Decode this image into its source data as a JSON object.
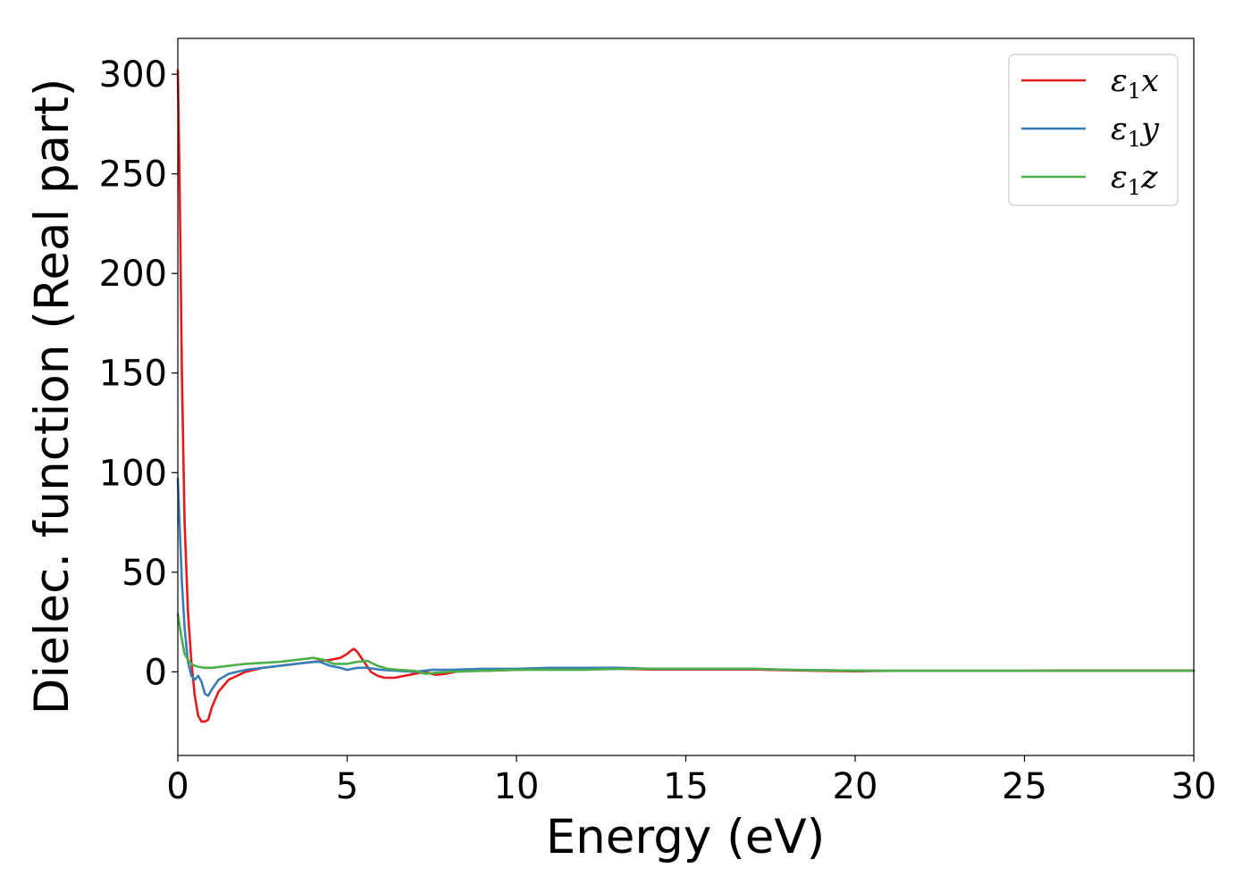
{
  "chart_data": {
    "type": "line",
    "xlabel": "Energy (eV)",
    "ylabel": "Dielec. function (Real part)",
    "xlim": [
      0,
      30
    ],
    "ylim": [
      -42,
      318
    ],
    "xticks": [
      0,
      5,
      10,
      15,
      20,
      25,
      30
    ],
    "yticks": [
      0,
      50,
      100,
      150,
      200,
      250,
      300
    ],
    "grid": false,
    "legend_position": "top-right",
    "series": [
      {
        "name_main": "ε",
        "name_sub": "1",
        "name_suffix": "x",
        "color": "#e41a1c",
        "x": [
          0.0,
          0.05,
          0.12,
          0.2,
          0.3,
          0.4,
          0.5,
          0.6,
          0.7,
          0.8,
          0.9,
          1.0,
          1.2,
          1.5,
          2.0,
          2.5,
          3.0,
          3.5,
          4.0,
          4.5,
          4.8,
          5.0,
          5.1,
          5.2,
          5.3,
          5.5,
          5.7,
          5.9,
          6.1,
          6.4,
          6.7,
          7.0,
          7.3,
          7.6,
          7.9,
          8.2,
          8.5,
          9.0,
          10.0,
          11.0,
          12.0,
          13.0,
          14.0,
          15.0,
          16.0,
          17.0,
          18.0,
          19.0,
          20.0,
          21.0,
          22.0,
          23.0,
          24.0,
          25.0,
          26.0,
          27.0,
          28.0,
          29.0,
          30.0
        ],
        "y": [
          302,
          250,
          150,
          75,
          30,
          5,
          -12,
          -22,
          -25,
          -25,
          -24,
          -18,
          -10,
          -4,
          0,
          2,
          3,
          4,
          5,
          6,
          7,
          9,
          10.5,
          11.5,
          10,
          5,
          0,
          -2,
          -3,
          -3,
          -2,
          -1,
          0,
          -1.5,
          -1,
          0,
          0.5,
          0.5,
          1,
          1.5,
          1.5,
          1.5,
          1.2,
          1.2,
          1.2,
          1.2,
          0.8,
          0.5,
          0.3,
          0.5,
          0.5,
          0.5,
          0.5,
          0.5,
          0.6,
          0.6,
          0.6,
          0.6,
          0.6
        ]
      },
      {
        "name_main": "ε",
        "name_sub": "1",
        "name_suffix": "y",
        "color": "#377eb8",
        "x": [
          0.0,
          0.05,
          0.12,
          0.2,
          0.3,
          0.4,
          0.5,
          0.6,
          0.7,
          0.8,
          0.9,
          1.0,
          1.2,
          1.5,
          2.0,
          2.5,
          3.0,
          3.5,
          4.0,
          4.2,
          4.5,
          4.8,
          5.0,
          5.3,
          5.6,
          6.0,
          6.5,
          7.0,
          7.5,
          8.0,
          9.0,
          10.0,
          11.0,
          12.0,
          13.0,
          14.0,
          15.0,
          16.0,
          17.0,
          18.0,
          19.0,
          20.0,
          21.0,
          22.0,
          23.0,
          24.0,
          25.0,
          26.0,
          27.0,
          28.0,
          29.0,
          30.0
        ],
        "y": [
          97,
          75,
          45,
          22,
          5,
          -2,
          -4,
          -2,
          -5,
          -11,
          -12,
          -9,
          -4,
          -1,
          1,
          2,
          3,
          4,
          5,
          5,
          3,
          2,
          1,
          2,
          2,
          1,
          0.5,
          0,
          1,
          1,
          1.5,
          1.5,
          2,
          2,
          2,
          1.5,
          1.5,
          1.5,
          1.5,
          1,
          0.8,
          0.6,
          0.5,
          0.5,
          0.5,
          0.5,
          0.5,
          0.5,
          0.5,
          0.5,
          0.5,
          0.5
        ]
      },
      {
        "name_main": "ε",
        "name_sub": "1",
        "name_suffix": "z",
        "color": "#4daf4a",
        "x": [
          0.0,
          0.1,
          0.2,
          0.3,
          0.4,
          0.5,
          0.6,
          0.8,
          1.0,
          1.5,
          2.0,
          2.5,
          3.0,
          3.5,
          4.0,
          4.3,
          4.6,
          5.0,
          5.3,
          5.6,
          5.9,
          6.2,
          6.5,
          7.0,
          7.3,
          7.6,
          8.0,
          9.0,
          10.0,
          11.0,
          12.0,
          13.0,
          14.0,
          15.0,
          16.0,
          17.0,
          18.0,
          19.0,
          20.0,
          21.0,
          22.0,
          23.0,
          24.0,
          25.0,
          26.0,
          27.0,
          28.0,
          29.0,
          30.0
        ],
        "y": [
          29,
          18,
          9,
          6,
          4,
          3,
          2.5,
          2,
          2,
          3,
          4,
          4.5,
          5,
          6,
          7,
          6,
          4,
          4,
          5,
          5.5,
          3,
          1.5,
          1,
          0.5,
          -1,
          -0.5,
          0,
          0.5,
          1,
          1,
          1,
          1.5,
          1.5,
          1.5,
          1.5,
          1.5,
          1,
          0.8,
          0.6,
          0.5,
          0.5,
          0.5,
          0.5,
          0.5,
          0.5,
          0.5,
          0.5,
          0.5,
          0.5
        ]
      }
    ]
  }
}
